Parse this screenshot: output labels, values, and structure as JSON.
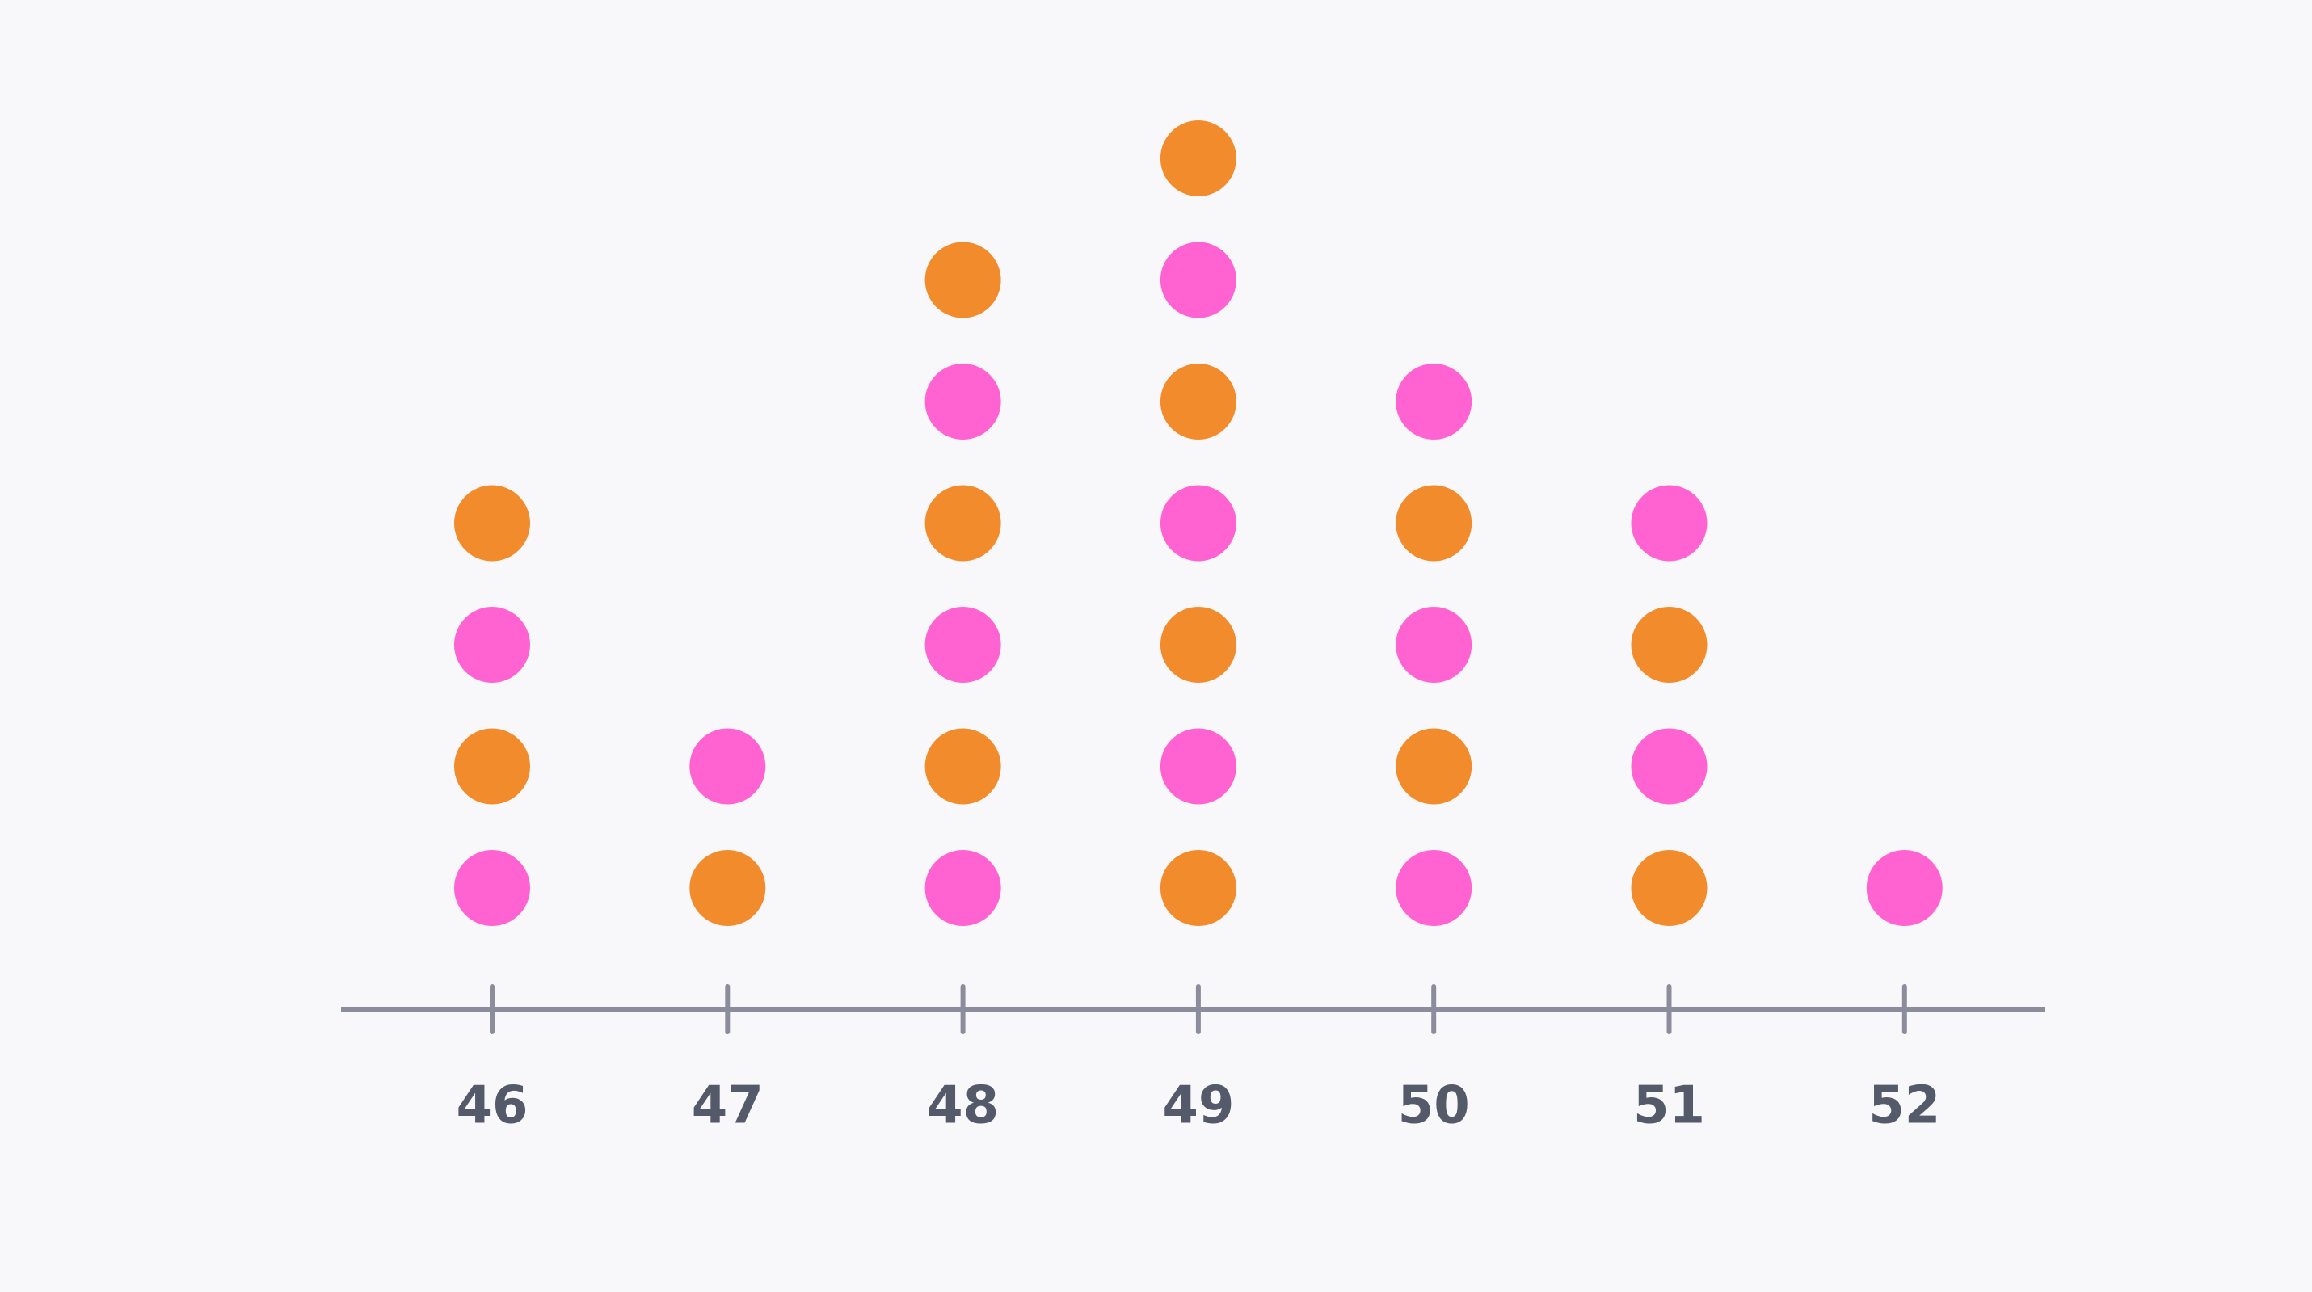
{
  "chart_data": {
    "type": "scatter",
    "subtype": "dot-plot",
    "title": "",
    "xlabel": "",
    "ylabel": "",
    "x_ticks": [
      46,
      47,
      48,
      49,
      50,
      51,
      52
    ],
    "xlim": [
      45.4,
      52.6
    ],
    "grid": false,
    "colors": {
      "pink": "#ff63d2",
      "orange": "#f28b2c",
      "axis": "#8b8d9c",
      "tick_label": "#555a6a",
      "background": "#f8f8fa"
    },
    "columns": [
      {
        "x": 46,
        "count": 4,
        "dots": [
          "pink",
          "orange",
          "pink",
          "orange"
        ]
      },
      {
        "x": 47,
        "count": 2,
        "dots": [
          "orange",
          "pink"
        ]
      },
      {
        "x": 48,
        "count": 6,
        "dots": [
          "pink",
          "orange",
          "pink",
          "orange",
          "pink",
          "orange"
        ]
      },
      {
        "x": 49,
        "count": 7,
        "dots": [
          "orange",
          "pink",
          "orange",
          "pink",
          "orange",
          "pink",
          "orange"
        ]
      },
      {
        "x": 50,
        "count": 5,
        "dots": [
          "pink",
          "orange",
          "pink",
          "orange",
          "pink"
        ]
      },
      {
        "x": 51,
        "count": 4,
        "dots": [
          "orange",
          "pink",
          "orange",
          "pink"
        ]
      },
      {
        "x": 52,
        "count": 1,
        "dots": [
          "pink"
        ]
      }
    ]
  }
}
